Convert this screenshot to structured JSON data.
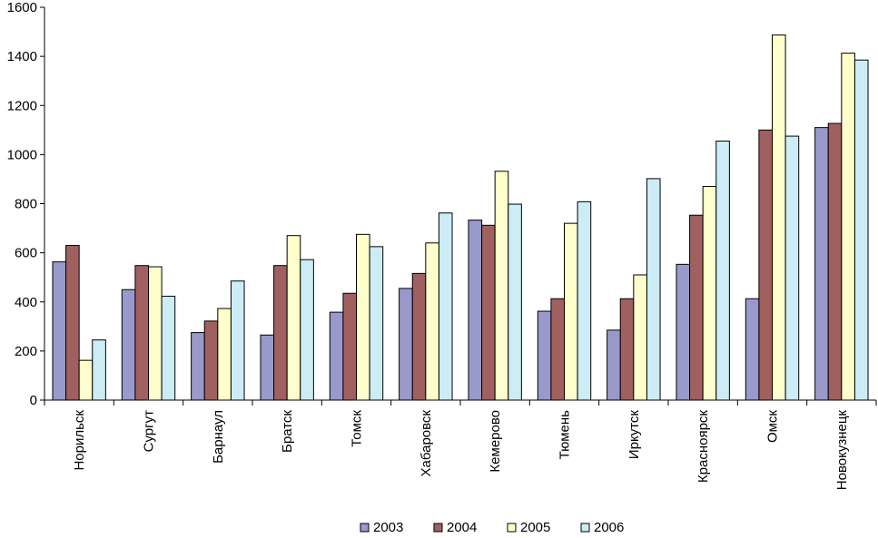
{
  "chart_data": {
    "type": "bar",
    "title": "",
    "xlabel": "",
    "ylabel": "",
    "ylim": [
      0,
      1600
    ],
    "yticks": [
      0,
      200,
      400,
      600,
      800,
      1000,
      1200,
      1400,
      1600
    ],
    "grid": false,
    "legend_position": "bottom",
    "categories": [
      "Норильск",
      "Сургут",
      "Барнаул",
      "Братск",
      "Томск",
      "Хабаровск",
      "Кемерово",
      "Тюмень",
      "Иркутск",
      "Красноярск",
      "Омск",
      "Новокузнецк"
    ],
    "series": [
      {
        "name": "2003",
        "color": "#9999cc",
        "values": [
          563,
          450,
          275,
          265,
          358,
          455,
          733,
          362,
          285,
          553,
          413,
          1110
        ]
      },
      {
        "name": "2004",
        "color": "#a0605f",
        "values": [
          630,
          548,
          322,
          548,
          435,
          516,
          712,
          413,
          413,
          753,
          1100,
          1127
        ]
      },
      {
        "name": "2005",
        "color": "#ffffcc",
        "values": [
          162,
          543,
          373,
          670,
          675,
          640,
          932,
          720,
          510,
          870,
          1487,
          1413
        ]
      },
      {
        "name": "2006",
        "color": "#ccecf6",
        "values": [
          245,
          423,
          485,
          572,
          625,
          762,
          798,
          808,
          902,
          1055,
          1075,
          1385
        ]
      }
    ]
  }
}
